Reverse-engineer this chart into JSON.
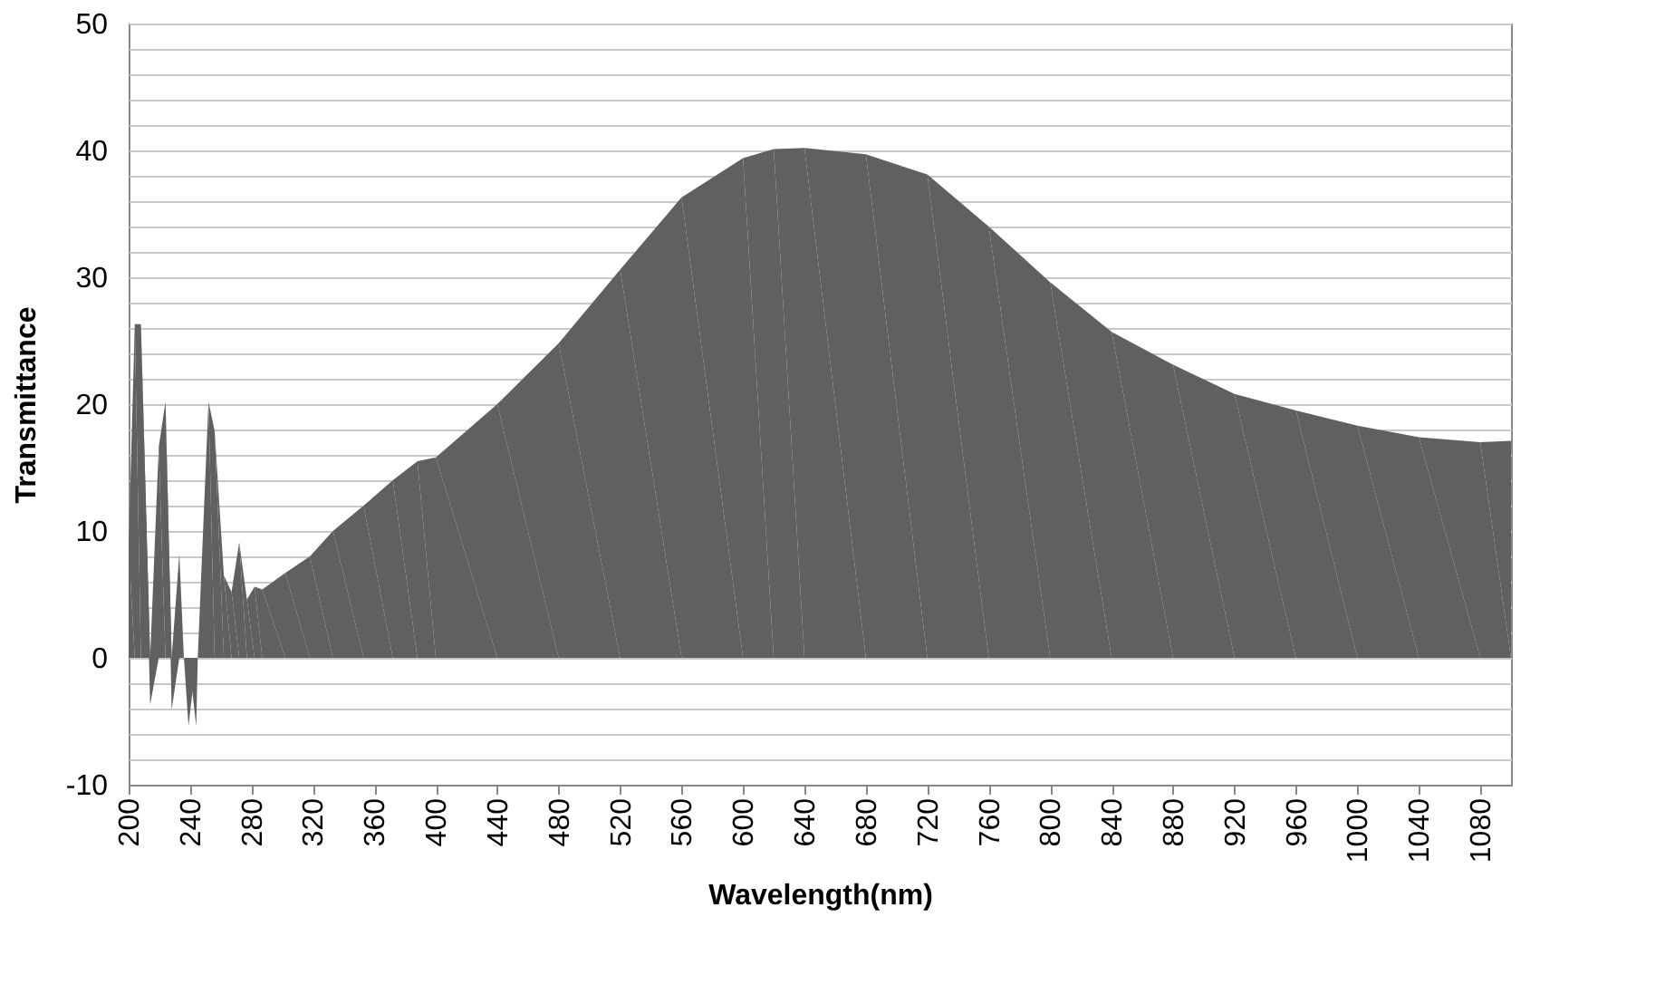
{
  "chart_data": {
    "type": "area",
    "xlabel": "Wavelength(nm)",
    "ylabel": "Transmittance",
    "x": [
      200,
      204,
      208,
      214,
      219.6,
      224,
      228,
      233,
      236,
      239,
      244,
      245,
      252,
      256,
      262,
      267,
      272,
      277,
      282,
      287,
      302,
      318,
      333,
      353,
      372,
      388,
      400,
      440,
      480,
      520,
      560,
      600,
      620,
      640,
      680,
      720,
      760,
      800,
      840,
      880,
      920,
      960,
      1000,
      1040,
      1080,
      1100
    ],
    "series": [
      {
        "color": "#606060",
        "values": [
          8.7,
          26.3,
          26.3,
          -3.7,
          16.6,
          20.2,
          -4.1,
          8.2,
          0,
          -5.4,
          -5.4,
          0,
          20.2,
          17.9,
          6.5,
          5.2,
          9.1,
          4.6,
          5.6,
          5.4,
          6.7,
          8.0,
          10.0,
          12.0,
          14.0,
          15.5,
          15.8,
          20.0,
          24.8,
          30.6,
          36.3,
          39.4,
          40.1,
          40.2,
          39.7,
          38.1,
          34.0,
          29.6,
          25.7,
          23.1,
          20.8,
          19.5,
          18.3,
          17.4,
          17.0,
          17.1
        ]
      }
    ],
    "xlim": [
      200,
      1100
    ],
    "xticks": [
      200,
      240,
      280,
      320,
      360,
      400,
      440,
      480,
      520,
      560,
      600,
      640,
      680,
      720,
      760,
      800,
      840,
      880,
      920,
      960,
      1000,
      1040,
      1080
    ],
    "ylim": [
      -10,
      50
    ],
    "yticks": [
      -10,
      {
        "value": -8,
        "label": null
      },
      {
        "value": -6,
        "label": null
      },
      {
        "value": -4,
        "label": null
      },
      {
        "value": -2,
        "label": null
      },
      0,
      {
        "value": 2,
        "label": null
      },
      {
        "value": 4,
        "label": null
      },
      {
        "value": 6,
        "label": null
      },
      {
        "value": 8,
        "label": null
      },
      10,
      {
        "value": 12,
        "label": null
      },
      {
        "value": 14,
        "label": null
      },
      {
        "value": 16,
        "label": null
      },
      {
        "value": 18,
        "label": null
      },
      20,
      {
        "value": 22,
        "label": null
      },
      {
        "value": 24,
        "label": null
      },
      {
        "value": 26,
        "label": null
      },
      {
        "value": 28,
        "label": null
      },
      30,
      {
        "value": 32,
        "label": null
      },
      {
        "value": 34,
        "label": null
      },
      {
        "value": 36,
        "label": null
      },
      {
        "value": 38,
        "label": null
      },
      40,
      {
        "value": 42,
        "label": null
      },
      {
        "value": 44,
        "label": null
      },
      {
        "value": 46,
        "label": null
      },
      {
        "value": 48,
        "label": null
      },
      50
    ],
    "grid": "y"
  }
}
